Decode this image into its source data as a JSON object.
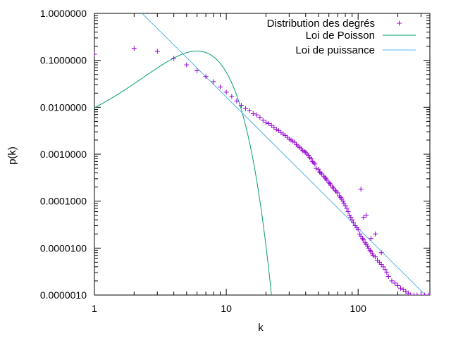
{
  "chart_data": {
    "type": "scatter",
    "xlabel": "k",
    "ylabel": "p(k)",
    "x_scale": "log",
    "y_scale": "log",
    "xlim": [
      1,
      350
    ],
    "ylim": [
      1e-06,
      1.0
    ],
    "x_ticks": [
      {
        "value": 1,
        "label": "1"
      },
      {
        "value": 10,
        "label": "10"
      },
      {
        "value": 100,
        "label": "100"
      }
    ],
    "y_ticks": [
      {
        "value": 1.0,
        "label": "1.0000000"
      },
      {
        "value": 0.1,
        "label": "0.1000000"
      },
      {
        "value": 0.01,
        "label": "0.0100000"
      },
      {
        "value": 0.001,
        "label": "0.0010000"
      },
      {
        "value": 0.0001,
        "label": "0.0001000"
      },
      {
        "value": 1e-05,
        "label": "0.0000100"
      },
      {
        "value": 1e-06,
        "label": "0.0000010"
      }
    ],
    "grid": false,
    "legend_position": "top-right",
    "series": [
      {
        "name": "Distribution des degrés",
        "kind": "points",
        "color": "#9400d3",
        "points": [
          [
            1,
            0.135
          ],
          [
            2,
            0.18
          ],
          [
            3,
            0.155
          ],
          [
            4,
            0.11
          ],
          [
            5,
            0.08
          ],
          [
            6,
            0.06
          ],
          [
            7,
            0.045
          ],
          [
            8,
            0.035
          ],
          [
            9,
            0.027
          ],
          [
            10,
            0.021
          ],
          [
            11,
            0.017
          ],
          [
            12,
            0.0135
          ],
          [
            13,
            0.011
          ],
          [
            14,
            0.0093
          ],
          [
            15,
            0.0085
          ],
          [
            16,
            0.0073
          ],
          [
            17,
            0.0069
          ],
          [
            18,
            0.0061
          ],
          [
            19,
            0.0053
          ],
          [
            20,
            0.0048
          ],
          [
            21,
            0.0045
          ],
          [
            22,
            0.0041
          ],
          [
            23,
            0.0037
          ],
          [
            24,
            0.0034
          ],
          [
            25,
            0.0032
          ],
          [
            26,
            0.0029
          ],
          [
            27,
            0.0027
          ],
          [
            28,
            0.0025
          ],
          [
            29,
            0.0023
          ],
          [
            30,
            0.0021
          ],
          [
            31,
            0.002
          ],
          [
            32,
            0.0019
          ],
          [
            33,
            0.0018
          ],
          [
            34,
            0.0016
          ],
          [
            35,
            0.0015
          ],
          [
            36,
            0.0014
          ],
          [
            37,
            0.0013
          ],
          [
            38,
            0.0012
          ],
          [
            39,
            0.00115
          ],
          [
            40,
            0.0011
          ],
          [
            41,
            0.001
          ],
          [
            42,
            0.00095
          ],
          [
            43,
            0.00085
          ],
          [
            44,
            0.0008
          ],
          [
            45,
            0.0007
          ],
          [
            46,
            0.00066
          ],
          [
            47,
            0.00062
          ],
          [
            48,
            0.0005
          ],
          [
            50,
            0.00048
          ],
          [
            51,
            0.00042
          ],
          [
            52,
            0.0004
          ],
          [
            53,
            0.00038
          ],
          [
            55,
            0.00034
          ],
          [
            56,
            0.00032
          ],
          [
            57,
            0.0003
          ],
          [
            58,
            0.00028
          ],
          [
            60,
            0.00025
          ],
          [
            61,
            0.00024
          ],
          [
            62,
            0.00022
          ],
          [
            64,
            0.0002
          ],
          [
            65,
            0.00019
          ],
          [
            67,
            0.00017
          ],
          [
            68,
            0.00016
          ],
          [
            70,
            0.00015
          ],
          [
            72,
            0.00013
          ],
          [
            74,
            0.00012
          ],
          [
            75,
            0.00011
          ],
          [
            77,
            0.0001
          ],
          [
            78,
            9e-05
          ],
          [
            80,
            8e-05
          ],
          [
            82,
            7e-05
          ],
          [
            84,
            6e-05
          ],
          [
            86,
            5e-05
          ],
          [
            88,
            4.5e-05
          ],
          [
            90,
            4e-05
          ],
          [
            92,
            3.5e-05
          ],
          [
            95,
            3e-05
          ],
          [
            98,
            2.7e-05
          ],
          [
            100,
            2.5e-05
          ],
          [
            103,
            2e-05
          ],
          [
            105,
            1.8e-05
          ],
          [
            108,
            1.6e-05
          ],
          [
            110,
            1.5e-05
          ],
          [
            113,
            1.3e-05
          ],
          [
            115,
            1.2e-05
          ],
          [
            118,
            1.1e-05
          ],
          [
            120,
            1e-05
          ],
          [
            123,
            9e-06
          ],
          [
            125,
            8.5e-06
          ],
          [
            128,
            7.5e-06
          ],
          [
            130,
            7e-06
          ],
          [
            135,
            6.5e-06
          ],
          [
            140,
            5.5e-06
          ],
          [
            145,
            5e-06
          ],
          [
            150,
            4.5e-06
          ],
          [
            155,
            4e-06
          ],
          [
            160,
            3.5e-06
          ],
          [
            165,
            3e-06
          ],
          [
            170,
            2.5e-06
          ],
          [
            180,
            2e-06
          ],
          [
            190,
            1.8e-06
          ],
          [
            200,
            1.6e-06
          ],
          [
            210,
            1.4e-06
          ],
          [
            220,
            1.3e-06
          ],
          [
            230,
            1.2e-06
          ],
          [
            240,
            1.1e-06
          ],
          [
            250,
            1e-06
          ],
          [
            265,
            1e-06
          ],
          [
            280,
            1e-06
          ],
          [
            300,
            1e-06
          ],
          [
            320,
            1e-06
          ],
          [
            340,
            1e-06
          ],
          [
            105,
            0.00018
          ],
          [
            115,
            5e-05
          ],
          [
            135,
            2e-05
          ],
          [
            150,
            8e-06
          ],
          [
            125,
            1.6e-05
          ],
          [
            110,
            4.5e-05
          ]
        ]
      },
      {
        "name": "Loi de Poisson",
        "kind": "line",
        "color": "#009e73",
        "lambda": 6.5
      },
      {
        "name": "Loi de puissance",
        "kind": "line",
        "color": "#56b4e9",
        "points": [
          [
            2.3,
            1.0
          ],
          [
            350,
            8e-07
          ]
        ]
      }
    ]
  }
}
